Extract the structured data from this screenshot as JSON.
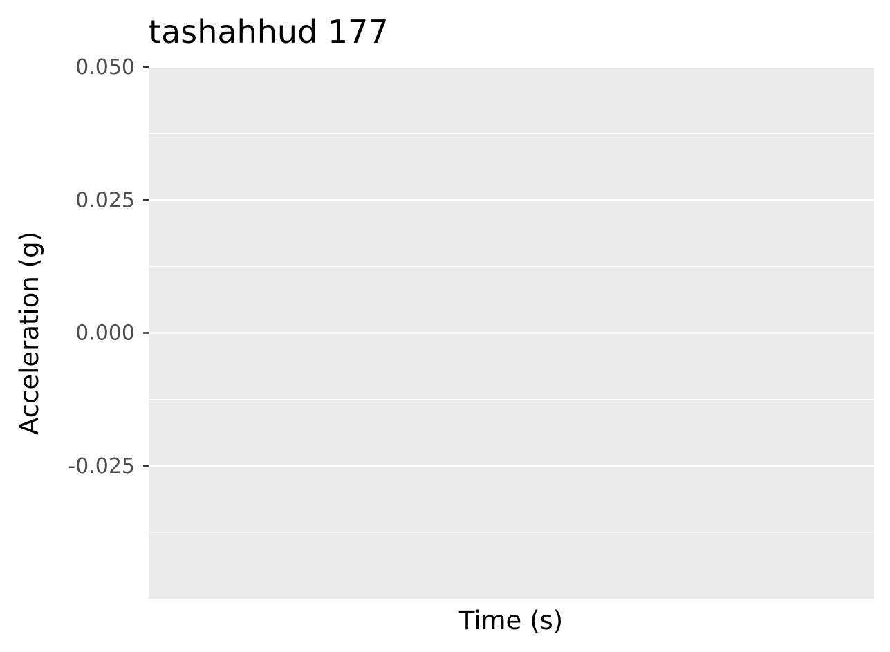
{
  "chart_data": {
    "type": "line",
    "title": "tashahhud 177",
    "xlabel": "Time (s)",
    "ylabel": "Acceleration (g)",
    "ylim": [
      -0.05,
      0.05
    ],
    "y_ticks": [
      0.05,
      0.025,
      0.0,
      -0.025
    ],
    "y_tick_labels": [
      "0.050",
      "0.025",
      "0.000",
      "-0.025"
    ],
    "y_minor_ticks": [
      0.0375,
      0.0125,
      -0.0125,
      -0.0375
    ],
    "x_ticks": [],
    "series": [],
    "grid": true,
    "legend": "none",
    "colors": {
      "panel_background": "#ebebeb",
      "gridline": "#ffffff",
      "tick_label": "#4d4d4d",
      "tick_mark": "#333333",
      "text": "#000000"
    }
  }
}
